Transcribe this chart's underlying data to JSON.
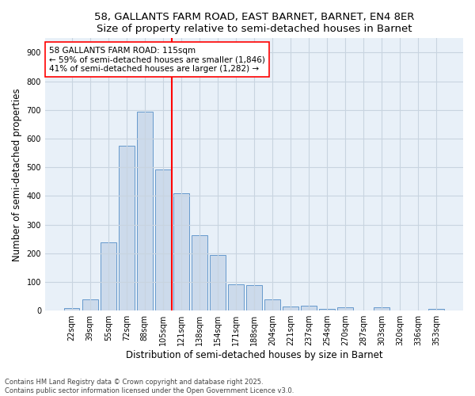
{
  "title1": "58, GALLANTS FARM ROAD, EAST BARNET, BARNET, EN4 8ER",
  "title2": "Size of property relative to semi-detached houses in Barnet",
  "xlabel": "Distribution of semi-detached houses by size in Barnet",
  "ylabel": "Number of semi-detached properties",
  "categories": [
    "22sqm",
    "39sqm",
    "55sqm",
    "72sqm",
    "88sqm",
    "105sqm",
    "121sqm",
    "138sqm",
    "154sqm",
    "171sqm",
    "188sqm",
    "204sqm",
    "221sqm",
    "237sqm",
    "254sqm",
    "270sqm",
    "287sqm",
    "303sqm",
    "320sqm",
    "336sqm",
    "353sqm"
  ],
  "values": [
    8,
    40,
    238,
    575,
    693,
    493,
    410,
    262,
    193,
    93,
    90,
    38,
    15,
    18,
    7,
    12,
    0,
    12,
    0,
    0,
    5
  ],
  "bar_color": "#ccdaeb",
  "bar_edge_color": "#6699cc",
  "vline_color": "red",
  "vline_x_index": 5,
  "annotation_text": "58 GALLANTS FARM ROAD: 115sqm\n← 59% of semi-detached houses are smaller (1,846)\n41% of semi-detached houses are larger (1,282) →",
  "annotation_box_color": "white",
  "annotation_box_edge": "red",
  "ylim": [
    0,
    950
  ],
  "yticks": [
    0,
    100,
    200,
    300,
    400,
    500,
    600,
    700,
    800,
    900
  ],
  "footer1": "Contains HM Land Registry data © Crown copyright and database right 2025.",
  "footer2": "Contains public sector information licensed under the Open Government Licence v3.0.",
  "bg_color": "#ffffff",
  "plot_bg_color": "#e8f0f8",
  "grid_color": "#c8d4e0",
  "title_fontsize": 9.5,
  "axis_label_fontsize": 8.5,
  "tick_fontsize": 7,
  "annotation_fontsize": 7.5,
  "footer_fontsize": 6
}
